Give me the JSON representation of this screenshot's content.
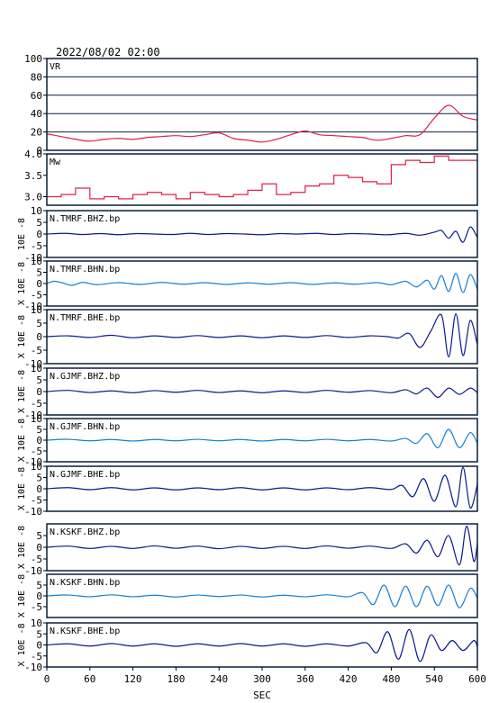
{
  "title": "2022/08/02 02:00",
  "xlabel": "SEC",
  "chart_data": {
    "type": "line",
    "title": "2022/08/02 02:00",
    "xlabel": "SEC",
    "xlim": [
      0,
      600
    ],
    "xticks": [
      0,
      60,
      120,
      180,
      240,
      300,
      360,
      420,
      480,
      540,
      600
    ],
    "colors": {
      "red": "#e0204a",
      "navy": "#0a1a8c",
      "blue": "#1a7fd0",
      "frame": "#0a1f3a"
    },
    "panels": [
      {
        "label": "VR",
        "color": "red",
        "ylim": [
          0,
          100
        ],
        "yticks": [
          "100",
          "80",
          "60",
          "40",
          "20",
          "0"
        ],
        "ytick_values": [
          100,
          80,
          60,
          40,
          20,
          0
        ],
        "grid": true,
        "ylabel": "",
        "x": [
          0,
          20,
          40,
          60,
          80,
          100,
          120,
          140,
          160,
          180,
          200,
          220,
          240,
          260,
          280,
          300,
          320,
          340,
          360,
          380,
          400,
          420,
          440,
          460,
          480,
          500,
          520,
          540,
          560,
          580,
          600
        ],
        "y": [
          18,
          15,
          12,
          10,
          12,
          13,
          12,
          14,
          15,
          16,
          15,
          17,
          19,
          13,
          11,
          9,
          12,
          17,
          21,
          17,
          16,
          15,
          14,
          11,
          13,
          16,
          17,
          35,
          49,
          37,
          33
        ]
      },
      {
        "label": "Mw",
        "color": "red",
        "ylim": [
          2.8,
          4.0
        ],
        "yticks": [
          "4.0",
          "3.5",
          "3.0"
        ],
        "ytick_values": [
          4.0,
          3.5,
          3.0
        ],
        "grid": false,
        "ylabel": "",
        "x": [
          0,
          20,
          40,
          60,
          80,
          100,
          120,
          140,
          160,
          180,
          200,
          220,
          240,
          260,
          280,
          300,
          320,
          340,
          360,
          380,
          400,
          420,
          440,
          460,
          480,
          500,
          520,
          540,
          560,
          580,
          600
        ],
        "y": [
          3.0,
          3.05,
          3.2,
          2.95,
          3.0,
          2.95,
          3.05,
          3.1,
          3.05,
          2.95,
          3.1,
          3.05,
          3.0,
          3.05,
          3.15,
          3.3,
          3.05,
          3.1,
          3.25,
          3.3,
          3.5,
          3.45,
          3.35,
          3.3,
          3.75,
          3.85,
          3.8,
          3.95,
          3.85,
          3.85,
          3.8
        ]
      },
      {
        "label": "N.TMRF.BHZ.bp",
        "color": "navy",
        "ylim": [
          -10,
          10
        ],
        "yticks": [
          "10",
          "5",
          "0",
          "-5",
          "-10"
        ],
        "ytick_values": [
          10,
          5,
          0,
          -5,
          -10
        ],
        "grid": false,
        "ylabel": "10E -8",
        "x": [
          0,
          25,
          50,
          75,
          100,
          125,
          150,
          175,
          200,
          225,
          250,
          275,
          300,
          325,
          350,
          375,
          400,
          425,
          450,
          475,
          500,
          520,
          540,
          550,
          560,
          570,
          580,
          590,
          600
        ],
        "y": [
          0,
          0.3,
          -0.2,
          0.2,
          -0.3,
          0.2,
          0,
          -0.2,
          0.3,
          -0.2,
          0.2,
          0,
          -0.3,
          0.2,
          0,
          0.3,
          -0.2,
          0.2,
          0,
          -0.3,
          0.3,
          -0.5,
          0.8,
          1.5,
          -1.8,
          1.2,
          -3.5,
          3.0,
          -1.5
        ]
      },
      {
        "label": "N.TMRF.BHN.bp",
        "color": "blue",
        "ylim": [
          -10,
          10
        ],
        "yticks": [
          "10",
          "5",
          "0",
          "-5",
          "-10"
        ],
        "ytick_values": [
          10,
          5,
          0,
          -5,
          -10
        ],
        "grid": false,
        "ylabel": "X 10E -8",
        "x": [
          0,
          10,
          20,
          35,
          50,
          70,
          100,
          130,
          160,
          190,
          220,
          250,
          280,
          310,
          340,
          370,
          400,
          430,
          460,
          480,
          500,
          515,
          530,
          540,
          550,
          560,
          570,
          580,
          590,
          600
        ],
        "y": [
          0,
          1.0,
          0.5,
          -0.8,
          0.5,
          -0.5,
          0.4,
          -0.4,
          0.5,
          -0.3,
          0.4,
          -0.4,
          0.3,
          -0.3,
          0.4,
          -0.4,
          0.3,
          -0.3,
          0.4,
          -0.5,
          1.0,
          -1.5,
          1.5,
          -2.5,
          3.5,
          -3.5,
          4.5,
          -4.0,
          4.0,
          -2.5
        ]
      },
      {
        "label": "N.TMRF.BHE.bp",
        "color": "navy",
        "ylim": [
          -10,
          10
        ],
        "yticks": [
          "10",
          "5",
          "0",
          "-5",
          "-10"
        ],
        "ytick_values": [
          10,
          5,
          0,
          -5,
          -10
        ],
        "grid": false,
        "ylabel": "X 10E -8",
        "x": [
          0,
          30,
          60,
          90,
          120,
          150,
          180,
          210,
          240,
          270,
          300,
          330,
          360,
          390,
          420,
          450,
          475,
          490,
          505,
          520,
          535,
          550,
          560,
          570,
          580,
          590,
          600
        ],
        "y": [
          0,
          0.3,
          -0.3,
          0.5,
          -0.4,
          0.3,
          -0.3,
          0.4,
          -0.3,
          0.3,
          -0.4,
          0.3,
          -0.3,
          0.4,
          -0.3,
          0.3,
          0,
          -0.5,
          1.2,
          -4.0,
          2.0,
          8.0,
          -7.5,
          8.5,
          -7.0,
          6.0,
          -3.0
        ]
      },
      {
        "label": "N.GJMF.BHZ.bp",
        "color": "navy",
        "ylim": [
          -10,
          10
        ],
        "yticks": [
          "10",
          "5",
          "0",
          "-5",
          "-10"
        ],
        "ytick_values": [
          10,
          5,
          0,
          -5,
          -10
        ],
        "grid": false,
        "ylabel": "X 10E -8",
        "x": [
          0,
          30,
          60,
          90,
          120,
          150,
          180,
          210,
          240,
          270,
          300,
          330,
          360,
          390,
          420,
          450,
          480,
          500,
          515,
          530,
          545,
          560,
          575,
          590,
          600
        ],
        "y": [
          0,
          0.5,
          -0.4,
          0.3,
          -0.5,
          0.4,
          -0.3,
          0.5,
          -0.4,
          0.3,
          -0.5,
          0.3,
          -0.4,
          0.5,
          -0.3,
          0.4,
          -0.5,
          0.8,
          -1.0,
          1.5,
          -2.5,
          1.5,
          -1.2,
          1.5,
          -0.5
        ]
      },
      {
        "label": "N.GJMF.BHN.bp",
        "color": "blue",
        "ylim": [
          -10,
          10
        ],
        "yticks": [
          "10",
          "5",
          "0",
          "-5",
          "-10"
        ],
        "ytick_values": [
          10,
          5,
          0,
          -5,
          -10
        ],
        "grid": false,
        "ylabel": "X 10E -8",
        "x": [
          0,
          30,
          60,
          90,
          120,
          150,
          180,
          210,
          240,
          270,
          300,
          330,
          360,
          390,
          420,
          450,
          480,
          500,
          515,
          530,
          545,
          560,
          575,
          590,
          600
        ],
        "y": [
          0,
          0.4,
          -0.3,
          0.3,
          -0.4,
          0.3,
          -0.3,
          0.4,
          -0.3,
          0.3,
          -0.4,
          0.3,
          -0.3,
          0.4,
          -0.3,
          0.3,
          -0.4,
          0.8,
          -1.5,
          3.0,
          -3.5,
          5.0,
          -3.5,
          3.5,
          -1.5
        ]
      },
      {
        "label": "N.GJMF.BHE.bp",
        "color": "navy",
        "ylim": [
          -10,
          10
        ],
        "yticks": [
          "10",
          "5",
          "0",
          "-5",
          "-10"
        ],
        "ytick_values": [
          10,
          5,
          0,
          -5,
          -10
        ],
        "grid": false,
        "ylabel": "X 10E -8",
        "x": [
          0,
          30,
          60,
          90,
          120,
          150,
          180,
          210,
          240,
          270,
          300,
          330,
          360,
          390,
          420,
          450,
          480,
          495,
          510,
          525,
          540,
          555,
          570,
          580,
          590,
          600
        ],
        "y": [
          0,
          0.5,
          -0.4,
          0.5,
          -0.5,
          0.4,
          -0.5,
          0.4,
          -0.4,
          0.5,
          -0.5,
          0.4,
          -0.5,
          0.4,
          -0.4,
          0.5,
          -0.3,
          1.5,
          -3.5,
          4.5,
          -5.5,
          6.0,
          -8.0,
          9.5,
          -8.5,
          2.0
        ]
      },
      {
        "label": "N.KSKF.BHZ.bp",
        "color": "navy",
        "ylim": [
          -10,
          10
        ],
        "yticks": [
          "5",
          "0",
          "-5",
          "-10"
        ],
        "ytick_values": [
          5,
          0,
          -5,
          -10
        ],
        "grid": false,
        "ylabel": "X 10E -8",
        "x": [
          0,
          30,
          60,
          90,
          120,
          150,
          180,
          210,
          240,
          270,
          300,
          330,
          360,
          390,
          420,
          450,
          480,
          500,
          515,
          530,
          545,
          560,
          575,
          585,
          595,
          600
        ],
        "y": [
          0,
          0.5,
          -0.5,
          0.4,
          -0.5,
          0.6,
          -0.4,
          0.5,
          -0.6,
          0.4,
          -0.5,
          0.4,
          -0.5,
          0.6,
          -0.4,
          0.5,
          -0.5,
          1.5,
          -2.5,
          3.0,
          -4.0,
          5.0,
          -7.5,
          9.0,
          -6.0,
          2.0
        ]
      },
      {
        "label": "N.KSKF.BHN.bp",
        "color": "blue",
        "ylim": [
          -10,
          10
        ],
        "yticks": [
          "5",
          "0",
          "-5"
        ],
        "ytick_values": [
          5,
          0,
          -5
        ],
        "grid": false,
        "ylabel": "X 10E -8",
        "x": [
          0,
          30,
          60,
          90,
          120,
          150,
          180,
          210,
          240,
          270,
          300,
          330,
          360,
          390,
          420,
          440,
          455,
          470,
          485,
          500,
          515,
          530,
          545,
          560,
          575,
          590,
          600
        ],
        "y": [
          0,
          0.4,
          -0.4,
          0.5,
          -0.4,
          0.3,
          -0.5,
          0.4,
          -0.3,
          0.4,
          -0.5,
          0.3,
          -0.4,
          0.5,
          -0.4,
          1.5,
          -4.0,
          5.0,
          -5.0,
          4.5,
          -5.0,
          4.5,
          -4.5,
          5.0,
          -5.5,
          3.5,
          -1.0
        ]
      },
      {
        "label": "N.KSKF.BHE.bp",
        "color": "navy",
        "ylim": [
          -10,
          10
        ],
        "yticks": [
          "10",
          "5",
          "0",
          "-5",
          "-10"
        ],
        "ytick_values": [
          10,
          5,
          0,
          -5,
          -10
        ],
        "grid": false,
        "ylabel": "X 10E -8",
        "x": [
          0,
          30,
          60,
          90,
          120,
          150,
          180,
          210,
          240,
          270,
          300,
          330,
          360,
          390,
          420,
          445,
          460,
          475,
          490,
          505,
          520,
          535,
          550,
          565,
          580,
          595,
          600
        ],
        "y": [
          0,
          0.5,
          -0.5,
          0.6,
          -0.5,
          0.5,
          -0.6,
          0.5,
          -0.5,
          0.6,
          -0.5,
          0.5,
          -0.6,
          0.5,
          -0.5,
          1.0,
          -3.5,
          6.0,
          -6.5,
          7.0,
          -7.5,
          4.5,
          -2.5,
          2.0,
          -2.5,
          2.0,
          -1.0
        ]
      }
    ]
  }
}
